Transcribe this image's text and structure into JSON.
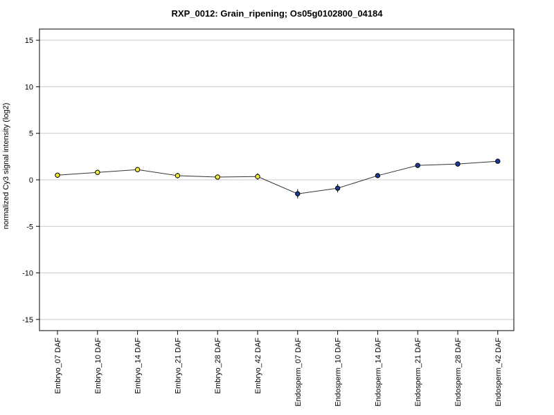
{
  "chart_data": {
    "type": "line",
    "title": "RXP_0012: Grain_ripening; Os05g0102800_04184",
    "ylabel": "normalized Cy3 signal intensity (log2)",
    "xlabel": "",
    "ylim": [
      -16.2,
      16.2
    ],
    "yticks": [
      15,
      10,
      5,
      0,
      -5,
      -10,
      -15
    ],
    "grid": true,
    "categories": [
      "Embryo_07 DAF",
      "Embryo_10 DAF",
      "Embryo_14 DAF",
      "Embryo_21 DAF",
      "Embryo_28 DAF",
      "Embryo_42 DAF",
      "Endosperm_07 DAF",
      "Endosperm_10 DAF",
      "Endosperm_14 DAF",
      "Endosperm_21 DAF",
      "Endosperm_28 DAF",
      "Endosperm_42 DAF"
    ],
    "series": [
      {
        "values": [
          0.5,
          0.8,
          1.1,
          0.45,
          0.3,
          0.35,
          -1.5,
          -0.9,
          0.45,
          1.55,
          1.7,
          2.0
        ],
        "errors": [
          0.15,
          0.2,
          0.15,
          0.3,
          0.15,
          0.35,
          0.5,
          0.45,
          0.25,
          0.1,
          0.1,
          0.1
        ],
        "point_colors": [
          "#f2ea3c",
          "#f2ea3c",
          "#f2ea3c",
          "#f2ea3c",
          "#f2ea3c",
          "#f2ea3c",
          "#1a3a9a",
          "#1a3a9a",
          "#1a3a9a",
          "#1a3a9a",
          "#1a3a9a",
          "#1a3a9a"
        ]
      }
    ]
  }
}
